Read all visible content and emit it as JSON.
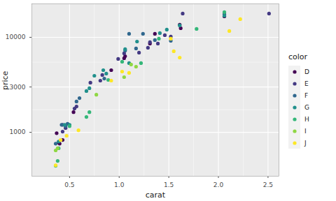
{
  "chart_data": {
    "type": "scatter",
    "x_label": "carat",
    "y_label": "price",
    "legend_title": "color",
    "legend": "right",
    "log": "y",
    "grid": true,
    "marker": "circle",
    "xlim": [
      0.12,
      2.61
    ],
    "ylim": [
      345,
      22500
    ],
    "xticks": [
      0.5,
      {
        "value": 1,
        "label": "1.0"
      },
      1.5,
      {
        "value": 2,
        "label": "2.0"
      },
      2.5
    ],
    "yticks": [
      1000,
      3000,
      10000
    ],
    "series": [
      {
        "name": "D",
        "color": "#440154",
        "x": [
          0.37,
          0.4,
          0.43,
          0.39,
          0.54,
          0.92,
          1.05,
          1.06,
          1.31,
          1.36,
          1.61,
          1.62,
          2.06
        ],
        "values": [
          980,
          760,
          830,
          780,
          1630,
          4510,
          6020,
          6330,
          8590,
          10880,
          13560,
          12460,
          16600
        ]
      },
      {
        "name": "E",
        "color": "#443A83",
        "x": [
          0.43,
          0.43,
          0.46,
          0.55,
          0.57,
          0.71,
          0.81,
          0.83,
          0.99,
          1.05,
          1.2,
          1.29,
          1.31,
          1.39,
          1.46,
          1.52,
          1.64,
          2.06,
          2.51
        ],
        "values": [
          1200,
          1017,
          1110,
          1780,
          1870,
          3330,
          3500,
          4010,
          5920,
          6780,
          6890,
          7760,
          8880,
          8590,
          10520,
          10170,
          17780,
          17490,
          17780
        ]
      },
      {
        "name": "F",
        "color": "#31688E",
        "x": [
          0.36,
          0.42,
          0.46,
          0.48,
          0.57,
          0.6,
          0.85,
          1.06,
          1.1,
          1.17,
          1.24,
          1.36,
          1.52
        ],
        "values": [
          760,
          1200,
          1160,
          1230,
          2110,
          2290,
          3680,
          7250,
          10880,
          7630,
          10880,
          9350,
          9190
        ]
      },
      {
        "name": "G",
        "color": "#21908C",
        "x": [
          0.39,
          0.45,
          0.5,
          0.67,
          0.7,
          0.75,
          0.84,
          0.87,
          1.06,
          1.1,
          1.18,
          1.41,
          1.48,
          1.61,
          2.06
        ],
        "values": [
          800,
          1200,
          1200,
          2720,
          2910,
          3940,
          4510,
          4150,
          7500,
          5350,
          9030,
          11070,
          12050,
          13340,
          16900
        ]
      },
      {
        "name": "H",
        "color": "#35B779",
        "x": [
          0.36,
          0.38,
          0.39,
          0.5,
          0.67,
          0.7,
          0.89,
          1.03,
          1.22,
          1.4,
          1.78,
          2.06
        ],
        "values": [
          444,
          500,
          680,
          1160,
          1450,
          1630,
          3560,
          5530,
          5350,
          9670,
          12250,
          18400
        ]
      },
      {
        "name": "I",
        "color": "#8FD744",
        "x": [
          0.38,
          0.36,
          0.77,
          1.05,
          1.12,
          1.17
        ],
        "values": [
          680,
          645,
          2490,
          3810,
          5170,
          4910
        ]
      },
      {
        "name": "J",
        "color": "#FDE725",
        "x": [
          0.36,
          0.41,
          0.47,
          0.59,
          0.92,
          1.03,
          1.1,
          1.52,
          1.55,
          1.61,
          2.11,
          2.22
        ],
        "values": [
          450,
          830,
          920,
          1050,
          3500,
          4360,
          4220,
          9670,
          7130,
          6120,
          11650,
          15530
        ]
      }
    ]
  }
}
